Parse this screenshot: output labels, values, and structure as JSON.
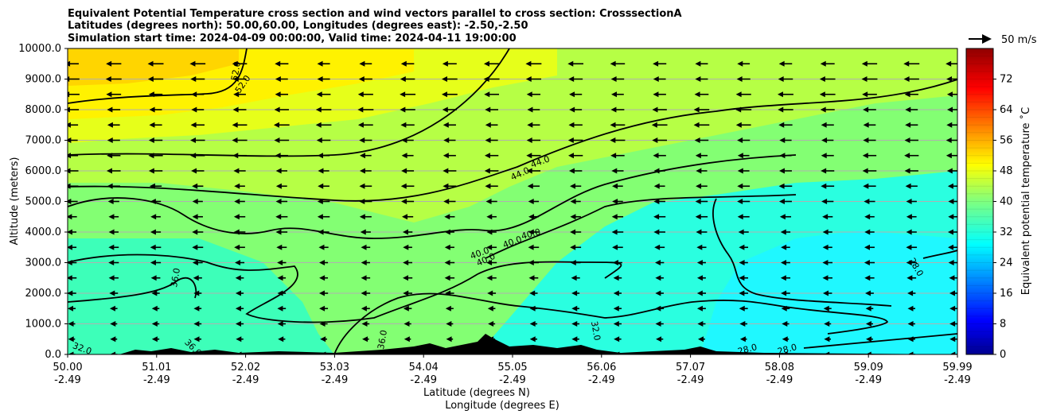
{
  "chart_data": {
    "type": "heatmap",
    "title_lines": [
      "Equivalent Potential Temperature cross section and wind vectors parallel to cross section: CrosssectionA",
      "Latitudes (degrees north): 50.00,60.00, Longitudes (degrees east): -2.50,-2.50",
      "Simulation start time: 2024-04-09 00:00:00, Valid time: 2024-04-11 19:00:00"
    ],
    "ylabel": "Altitude (meters)",
    "xlabel": "Latitude (degrees N)",
    "xlabel2": "Longitude (degrees E)",
    "ylim": [
      0,
      10000
    ],
    "y_ticks": [
      "0.0",
      "1000.0",
      "2000.0",
      "3000.0",
      "4000.0",
      "5000.0",
      "6000.0",
      "7000.0",
      "8000.0",
      "9000.0",
      "10000.0"
    ],
    "x_ticks_lat": [
      "50.00",
      "51.01",
      "52.02",
      "53.03",
      "54.04",
      "55.05",
      "56.06",
      "57.07",
      "58.08",
      "59.09",
      "59.99"
    ],
    "x_ticks_lon": [
      "-2.49",
      "-2.49",
      "-2.49",
      "-2.49",
      "-2.49",
      "-2.49",
      "-2.49",
      "-2.49",
      "-2.49",
      "-2.49",
      "-2.49"
    ],
    "grid": true,
    "colorbar": {
      "label": "Equivalent potential temperature ˚C",
      "range": [
        0,
        80
      ],
      "ticks": [
        "0",
        "8",
        "16",
        "24",
        "32",
        "40",
        "48",
        "56",
        "64",
        "72"
      ],
      "colormap": "jet"
    },
    "wind_key": {
      "label": "50 m/s",
      "direction": "right"
    },
    "contour_labels": [
      "52.0",
      "52.0",
      "44.0",
      "44.0",
      "40.0",
      "40.0",
      "40.0",
      "40.0",
      "36.0",
      "36.0",
      "36.0",
      "32.0",
      "32.0",
      "28.0",
      "28.0",
      "28.0"
    ],
    "field_summary": {
      "upper_left_max": 52,
      "upper_levels": 46,
      "mid_levels": 40,
      "lower_right_min": 28
    }
  }
}
